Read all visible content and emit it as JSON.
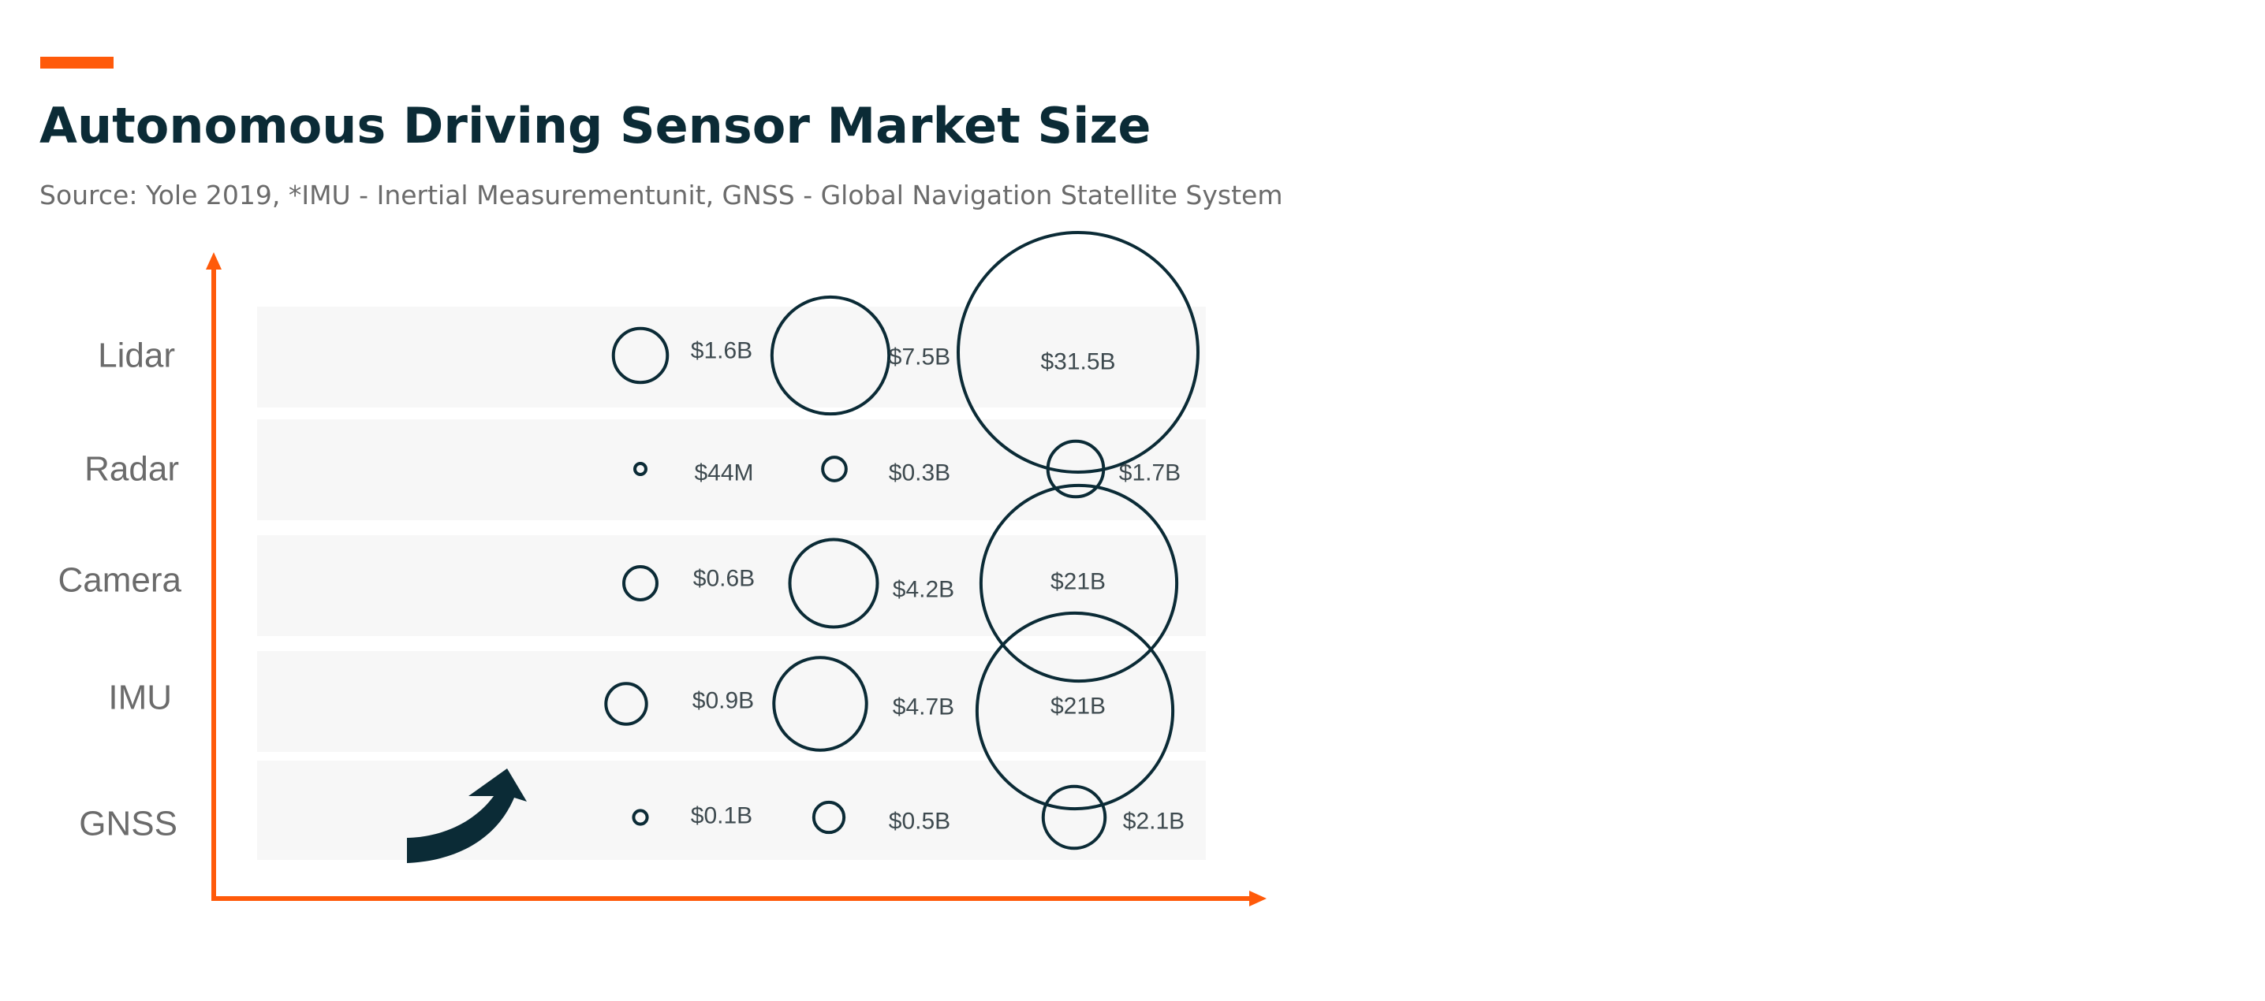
{
  "header": {
    "title": "Autonomous Driving Sensor Market Size",
    "subtitle": "Source:  Yole 2019, *IMU - Inertial Measurementunit, GNSS - Global Navigation Statellite System"
  },
  "colors": {
    "accent": "#FF5A0A",
    "title": "#0B2B36",
    "subtitle": "#6B6B6B",
    "row_background": "#F7F7F7",
    "bubble_stroke": "#0B2B36",
    "category_label": "#6B6B6B",
    "value_label": "#3E4A4F",
    "arrow_fill": "#0B2B36"
  },
  "icons": {
    "trend": "curved-up-arrow-icon"
  },
  "chart_data": {
    "type": "bubble",
    "title": "Autonomous Driving Sensor Market Size",
    "xlabel": "",
    "ylabel": "",
    "grid": false,
    "legend": "none",
    "categories": [
      "Lidar",
      "Radar",
      "Camera",
      "IMU",
      "GNSS"
    ],
    "columns": 3,
    "series": [
      {
        "values": [
          1.6,
          0.044,
          0.6,
          0.9,
          0.1
        ],
        "labels": [
          "$1.6B",
          "$44M",
          "$0.6B",
          "$0.9B",
          "$0.1B"
        ]
      },
      {
        "values": [
          7.5,
          0.3,
          4.2,
          4.7,
          0.5
        ],
        "labels": [
          "$7.5B",
          "$0.3B",
          "$4.2B",
          "$4.7B",
          "$0.5B"
        ]
      },
      {
        "values": [
          31.5,
          1.7,
          21,
          21,
          2.1
        ],
        "labels": [
          "$31.5B",
          "$1.7B",
          "$21B",
          "$21B",
          "$2.1B"
        ]
      }
    ]
  }
}
